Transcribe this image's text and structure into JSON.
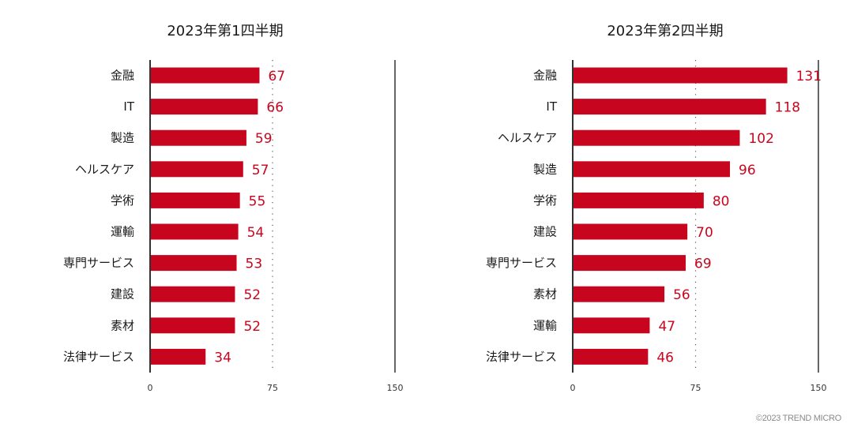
{
  "chart_data": [
    {
      "type": "bar",
      "orientation": "horizontal",
      "title": "2023年第1四半期",
      "categories": [
        "金融",
        "IT",
        "製造",
        "ヘルスケア",
        "学術",
        "運輸",
        "専門サービス",
        "建設",
        "素材",
        "法律サービス"
      ],
      "values": [
        67,
        66,
        59,
        57,
        55,
        54,
        53,
        52,
        52,
        34
      ],
      "xlim": [
        0,
        150
      ],
      "xticks": [
        "0",
        "75",
        "150"
      ],
      "reference_line": 75,
      "xlabel": "",
      "ylabel": ""
    },
    {
      "type": "bar",
      "orientation": "horizontal",
      "title": "2023年第2四半期",
      "categories": [
        "金融",
        "IT",
        "ヘルスケア",
        "製造",
        "学術",
        "建設",
        "専門サービス",
        "素材",
        "運輸",
        "法律サービス"
      ],
      "values": [
        131,
        118,
        102,
        96,
        80,
        70,
        69,
        56,
        47,
        46
      ],
      "xlim": [
        0,
        150
      ],
      "xticks": [
        "0",
        "75",
        "150"
      ],
      "reference_line": 75,
      "xlabel": "",
      "ylabel": ""
    }
  ],
  "colors": {
    "bar": "#c8051e",
    "value_label": "#c8051e",
    "axis": "#333333"
  },
  "footer": "©2023 TREND MICRO"
}
